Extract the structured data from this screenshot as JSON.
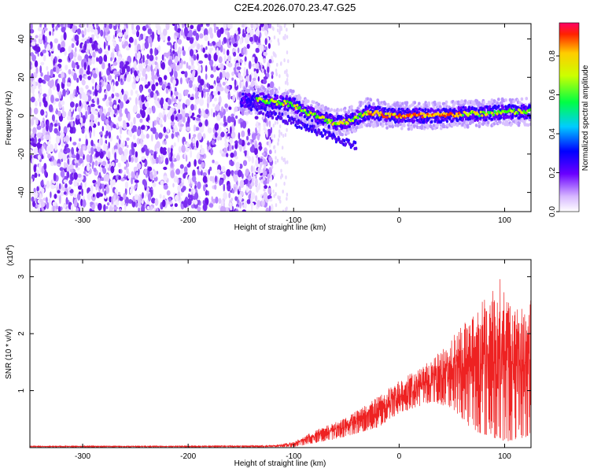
{
  "figure": {
    "title": "C2E4.2026.070.23.47.G25"
  },
  "colors": {
    "snr_line": "#ee2222",
    "noise_purple": "#7a2cf0",
    "axis": "#000000"
  },
  "chart_data": [
    {
      "type": "heatmap",
      "name": "spectrogram",
      "xlabel": "Height of straight line (km)",
      "ylabel": "Frequency (Hz)",
      "xlim": [
        -350,
        125
      ],
      "ylim": [
        -50,
        48
      ],
      "xticks": [
        -300,
        -200,
        -100,
        0,
        100
      ],
      "yticks": [
        -40,
        -20,
        0,
        20,
        40
      ],
      "noise_region_x": [
        -350,
        -120
      ],
      "ridge": [
        {
          "x": -145,
          "y": 8
        },
        {
          "x": -130,
          "y": 8
        },
        {
          "x": -115,
          "y": 7
        },
        {
          "x": -100,
          "y": 6
        },
        {
          "x": -90,
          "y": 2
        },
        {
          "x": -80,
          "y": 0
        },
        {
          "x": -70,
          "y": -2
        },
        {
          "x": -60,
          "y": -4
        },
        {
          "x": -50,
          "y": -3
        },
        {
          "x": -40,
          "y": -1
        },
        {
          "x": -30,
          "y": 2
        },
        {
          "x": -20,
          "y": 1
        },
        {
          "x": -10,
          "y": 0
        },
        {
          "x": 0,
          "y": 0
        },
        {
          "x": 20,
          "y": 0
        },
        {
          "x": 40,
          "y": 0
        },
        {
          "x": 60,
          "y": 1
        },
        {
          "x": 80,
          "y": 1
        },
        {
          "x": 100,
          "y": 2
        },
        {
          "x": 125,
          "y": 2
        }
      ],
      "colorbar": {
        "label": "Normalized spectral amplitude",
        "range": [
          0,
          0.97
        ],
        "ticks": [
          0.0,
          0.2,
          0.4,
          0.6,
          0.8
        ]
      }
    },
    {
      "type": "line",
      "name": "snr",
      "xlabel": "Height of straight line (km)",
      "ylabel": "SNR (10 * v/v)",
      "scale_label": "(x10",
      "scale_exp": "4",
      "xlim": [
        -350,
        125
      ],
      "ylim": [
        0,
        3.3
      ],
      "xticks": [
        -300,
        -200,
        -100,
        0,
        100
      ],
      "yticks": [
        1,
        2,
        3
      ],
      "envelope": [
        {
          "x": -350,
          "y": 0.03
        },
        {
          "x": -200,
          "y": 0.03
        },
        {
          "x": -120,
          "y": 0.04
        },
        {
          "x": -100,
          "y": 0.1
        },
        {
          "x": -80,
          "y": 0.3
        },
        {
          "x": -60,
          "y": 0.45
        },
        {
          "x": -40,
          "y": 0.65
        },
        {
          "x": -20,
          "y": 0.9
        },
        {
          "x": 0,
          "y": 1.2
        },
        {
          "x": 20,
          "y": 1.4
        },
        {
          "x": 40,
          "y": 1.7
        },
        {
          "x": 60,
          "y": 2.2
        },
        {
          "x": 80,
          "y": 2.6
        },
        {
          "x": 95,
          "y": 3.0
        },
        {
          "x": 110,
          "y": 2.4
        },
        {
          "x": 125,
          "y": 2.6
        }
      ],
      "floor": [
        {
          "x": -350,
          "y": 0.01
        },
        {
          "x": -100,
          "y": 0.01
        },
        {
          "x": -60,
          "y": 0.15
        },
        {
          "x": -20,
          "y": 0.35
        },
        {
          "x": 0,
          "y": 0.6
        },
        {
          "x": 30,
          "y": 0.8
        },
        {
          "x": 50,
          "y": 0.7
        },
        {
          "x": 70,
          "y": 0.3
        },
        {
          "x": 100,
          "y": 0.1
        },
        {
          "x": 125,
          "y": 0.2
        }
      ]
    }
  ]
}
